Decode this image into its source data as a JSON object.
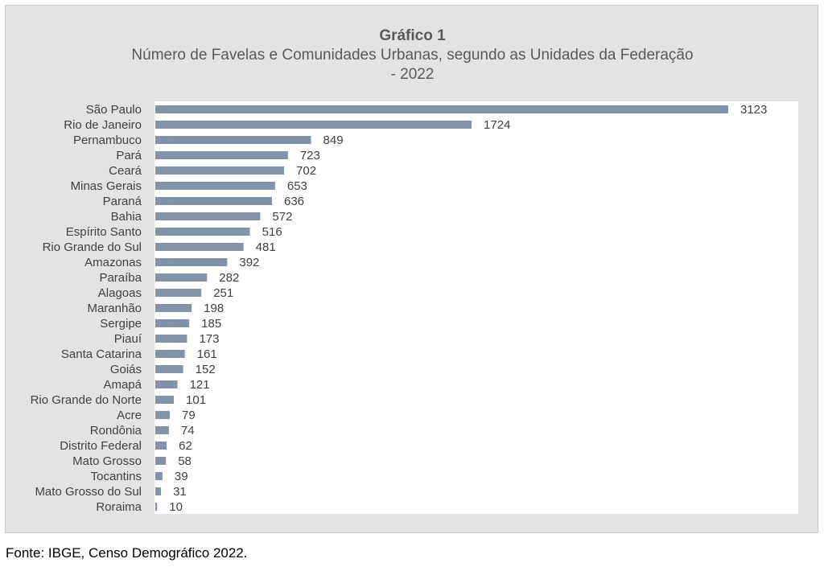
{
  "chart_data": {
    "type": "bar",
    "orientation": "horizontal",
    "title": "Gráfico 1",
    "subtitle_line1": "Número de Favelas e Comunidades Urbanas, segundo as Unidades da Federação",
    "subtitle_line2": "- 2022",
    "categories": [
      "São Paulo",
      "Rio de Janeiro",
      "Pernambuco",
      "Pará",
      "Ceará",
      "Minas Gerais",
      "Paraná",
      "Bahia",
      "Espírito Santo",
      "Rio Grande do Sul",
      "Amazonas",
      "Paraíba",
      "Alagoas",
      "Maranhão",
      "Sergipe",
      "Piauí",
      "Santa Catarina",
      "Goiás",
      "Amapá",
      "Rio Grande do Norte",
      "Acre",
      "Rondônia",
      "Distrito Federal",
      "Mato Grosso",
      "Tocantins",
      "Mato Grosso do Sul",
      "Roraima"
    ],
    "values": [
      3123,
      1724,
      849,
      723,
      702,
      653,
      636,
      572,
      516,
      481,
      392,
      282,
      251,
      198,
      185,
      173,
      161,
      152,
      121,
      101,
      79,
      74,
      62,
      58,
      39,
      31,
      10
    ],
    "xlim": [
      0,
      3500
    ],
    "bar_color": "#8393aa",
    "grid": false,
    "legend": "none"
  },
  "source": "Fonte: IBGE, Censo Demográfico 2022."
}
